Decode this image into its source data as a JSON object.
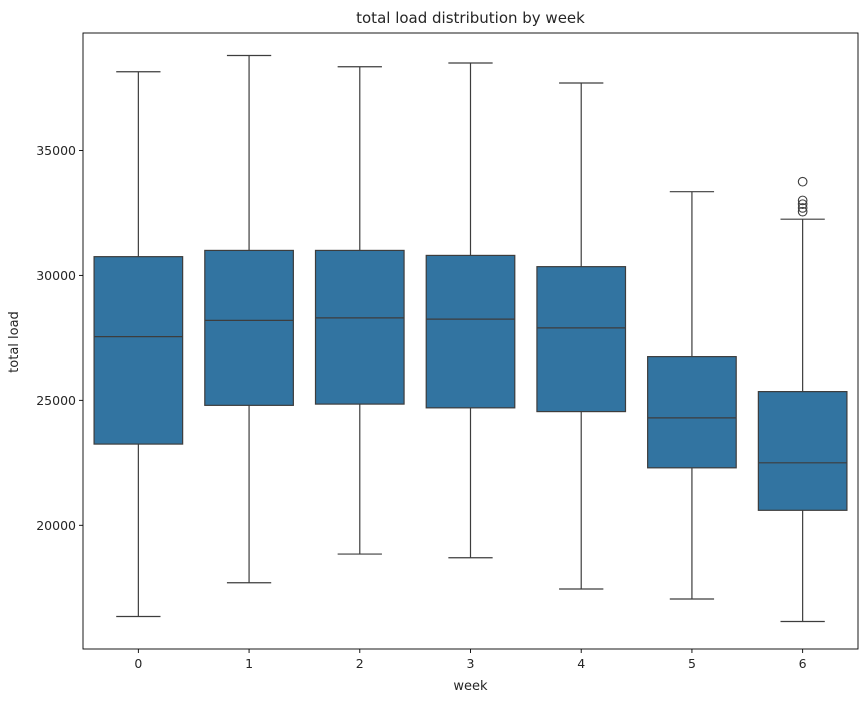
{
  "chart_data": {
    "type": "box",
    "title": "total load distribution by week",
    "xlabel": "week",
    "ylabel": "total load",
    "categories": [
      "0",
      "1",
      "2",
      "3",
      "4",
      "5",
      "6"
    ],
    "y_ticks": [
      20000,
      25000,
      30000,
      35000
    ],
    "ylim": [
      15050,
      39700
    ],
    "grid": false,
    "box_color": "#3274a1",
    "line_color": "#3d3d3d",
    "boxes": [
      {
        "category": "0",
        "whisker_low": 16350,
        "q1": 23250,
        "median": 27550,
        "q3": 30750,
        "whisker_high": 38150,
        "outliers": []
      },
      {
        "category": "1",
        "whisker_low": 17700,
        "q1": 24800,
        "median": 28200,
        "q3": 31000,
        "whisker_high": 38800,
        "outliers": []
      },
      {
        "category": "2",
        "whisker_low": 18850,
        "q1": 24850,
        "median": 28300,
        "q3": 31000,
        "whisker_high": 38350,
        "outliers": []
      },
      {
        "category": "3",
        "whisker_low": 18700,
        "q1": 24700,
        "median": 28250,
        "q3": 30800,
        "whisker_high": 38500,
        "outliers": []
      },
      {
        "category": "4",
        "whisker_low": 17450,
        "q1": 24550,
        "median": 27900,
        "q3": 30350,
        "whisker_high": 37700,
        "outliers": []
      },
      {
        "category": "5",
        "whisker_low": 17050,
        "q1": 22300,
        "median": 24300,
        "q3": 26750,
        "whisker_high": 33350,
        "outliers": []
      },
      {
        "category": "6",
        "whisker_low": 16150,
        "q1": 20600,
        "median": 22500,
        "q3": 25350,
        "whisker_high": 32250,
        "outliers": [
          32550,
          32700,
          32850,
          33000,
          33750
        ]
      }
    ]
  }
}
